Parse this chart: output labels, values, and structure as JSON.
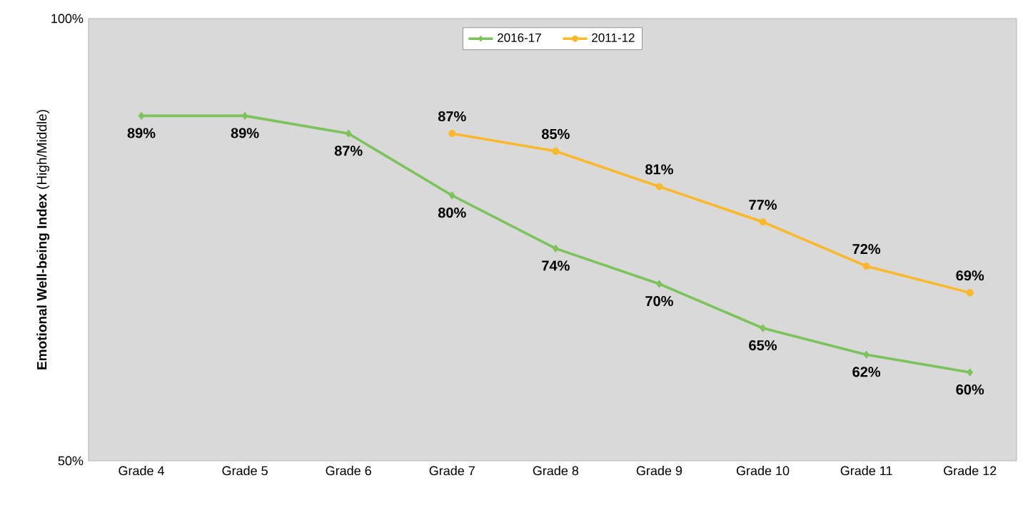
{
  "chart_data": {
    "type": "line",
    "ylabel": "**Emotional Well-being Index** (High/Middle)",
    "categories": [
      "Grade 4",
      "Grade 5",
      "Grade 6",
      "Grade 7",
      "Grade 8",
      "Grade 9",
      "Grade 10",
      "Grade 11",
      "Grade 12"
    ],
    "series": [
      {
        "name": "2016-17",
        "color": "#7dc35b",
        "marker": "diamond",
        "values": [
          89,
          89,
          87,
          80,
          74,
          70,
          65,
          62,
          60
        ],
        "value_labels": [
          "89%",
          "89%",
          "87%",
          "80%",
          "74%",
          "70%",
          "65%",
          "62%",
          "60%"
        ]
      },
      {
        "name": "2011-12",
        "color": "#fbb829",
        "marker": "circle",
        "values": [
          null,
          null,
          null,
          87,
          85,
          81,
          77,
          72,
          69
        ],
        "value_labels": [
          null,
          null,
          null,
          "87%",
          "85%",
          "81%",
          "77%",
          "72%",
          "69%"
        ]
      }
    ],
    "ylim": [
      50,
      100
    ],
    "yticks": [
      {
        "value": 50,
        "label": "50%"
      },
      {
        "value": 100,
        "label": "100%"
      }
    ],
    "grid": false,
    "legend": "top"
  }
}
